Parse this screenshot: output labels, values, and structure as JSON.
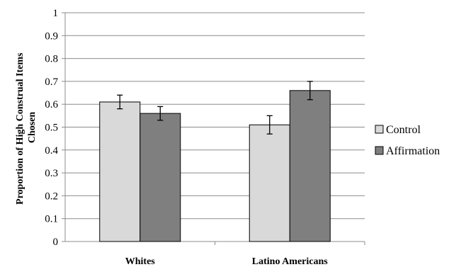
{
  "chart_data": {
    "type": "bar",
    "title": "",
    "xlabel": "",
    "ylabel_lines": [
      "Proportion of High Construal Items",
      "Chosen"
    ],
    "categories": [
      "Whites",
      "Latino Americans"
    ],
    "ylim": [
      0,
      1
    ],
    "yticks": [
      "0",
      "0.1",
      "0.2",
      "0.3",
      "0.4",
      "0.5",
      "0.6",
      "0.7",
      "0.8",
      "0.9",
      "1"
    ],
    "grid": true,
    "legend_position": "right",
    "series": [
      {
        "name": "Control",
        "color": "#d9d9d9",
        "values": [
          0.61,
          0.51
        ],
        "error": [
          0.03,
          0.04
        ]
      },
      {
        "name": "Affirmation",
        "color": "#7f7f7f",
        "values": [
          0.56,
          0.66
        ],
        "error": [
          0.03,
          0.04
        ]
      }
    ]
  }
}
